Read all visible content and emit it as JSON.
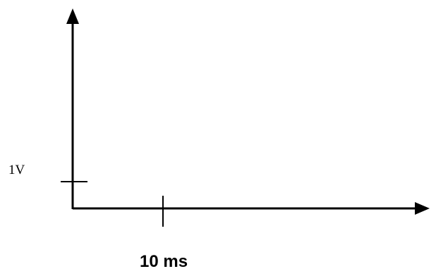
{
  "diagram": {
    "y_tick_label": "1V",
    "x_tick_label": "10 ms",
    "line_color": "#000000"
  }
}
